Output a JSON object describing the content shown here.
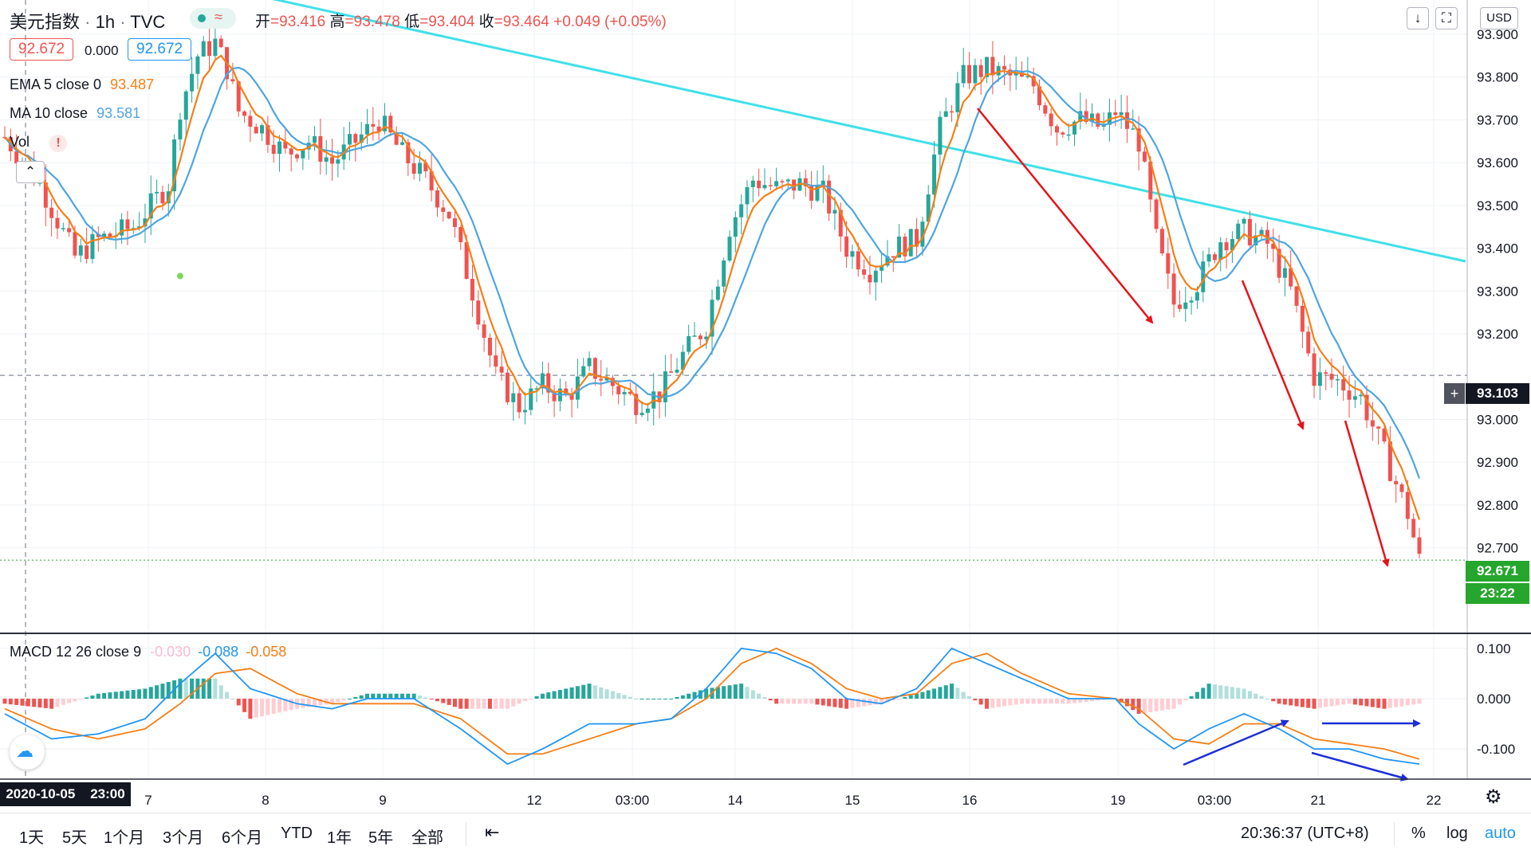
{
  "header": {
    "symbol": "美元指数",
    "interval": "1h",
    "exchange": "TVC",
    "ohlc": [
      {
        "label": "开",
        "value": "93.416"
      },
      {
        "label": "高",
        "value": "93.478"
      },
      {
        "label": "低",
        "value": "93.404"
      },
      {
        "label": "收",
        "value": "93.464"
      }
    ],
    "change": "+0.049 (+0.05%)",
    "price_box_left": "92.672",
    "spread": "0.000",
    "price_box_right": "92.672",
    "currency": "USD"
  },
  "indicators": {
    "ema": {
      "label": "EMA 5 close 0",
      "value": "93.487"
    },
    "ma": {
      "label": "MA 10 close",
      "value": "93.581"
    },
    "vol": {
      "label": "Vol",
      "alert": "!"
    },
    "macd": {
      "label": "MACD 12 26 close 9",
      "hist": "-0.030",
      "macd": "-0.088",
      "signal": "-0.058"
    }
  },
  "colors": {
    "up": "#26a69a",
    "down": "#ef5350",
    "ema": "#f57f17",
    "ma": "#4ea5e0",
    "trendline": "#40e0e8",
    "arrow_red": "#e8121a",
    "arrow_blue": "#1c2fd6",
    "last_price": "#26a62d"
  },
  "price_labels": {
    "crosshair": "93.103",
    "last": "92.671",
    "countdown": "23:22"
  },
  "time_axis": {
    "crosshair_label": "2020-10-05   23:00",
    "bottom_left": "2020-10-05",
    "bottom_time": "23:00"
  },
  "bottom_bar": {
    "ranges": [
      "1天",
      "5天",
      "1个月",
      "3个月",
      "6个月",
      "YTD",
      "1年",
      "5年",
      "全部"
    ],
    "clock": "20:36:37 (UTC+8)",
    "percent": "%",
    "log": "log",
    "auto": "auto"
  },
  "chart_data": [
    {
      "type": "candlestick",
      "title": "美元指数 1h TVC",
      "ylim": [
        92.5,
        93.98
      ],
      "y_ticks": [
        "93.900",
        "93.800",
        "93.700",
        "93.600",
        "93.500",
        "93.400",
        "93.300",
        "93.200",
        "93.000",
        "92.900",
        "92.800",
        "92.700"
      ],
      "x_ticks": [
        "7",
        "8",
        "9",
        "12",
        "03:00",
        "14",
        "15",
        "16",
        "19",
        "03:00",
        "21",
        "22"
      ],
      "price_path": [
        [
          0,
          93.66
        ],
        [
          6,
          93.55
        ],
        [
          12,
          93.38
        ],
        [
          16,
          93.42
        ],
        [
          22,
          93.45
        ],
        [
          28,
          93.55
        ],
        [
          30,
          93.73
        ],
        [
          33,
          93.85
        ],
        [
          36,
          93.88
        ],
        [
          38,
          93.82
        ],
        [
          40,
          93.72
        ],
        [
          44,
          93.68
        ],
        [
          48,
          93.62
        ],
        [
          52,
          93.65
        ],
        [
          56,
          93.6
        ],
        [
          60,
          93.65
        ],
        [
          64,
          93.7
        ],
        [
          68,
          93.62
        ],
        [
          72,
          93.56
        ],
        [
          76,
          93.48
        ],
        [
          80,
          93.3
        ],
        [
          84,
          93.1
        ],
        [
          88,
          93.03
        ],
        [
          92,
          93.08
        ],
        [
          96,
          93.05
        ],
        [
          100,
          93.12
        ],
        [
          104,
          93.08
        ],
        [
          108,
          93.04
        ],
        [
          112,
          93.06
        ],
        [
          116,
          93.15
        ],
        [
          120,
          93.22
        ],
        [
          124,
          93.45
        ],
        [
          128,
          93.56
        ],
        [
          132,
          93.54
        ],
        [
          136,
          93.55
        ],
        [
          140,
          93.53
        ],
        [
          144,
          93.4
        ],
        [
          148,
          93.35
        ],
        [
          152,
          93.4
        ],
        [
          156,
          93.42
        ],
        [
          160,
          93.68
        ],
        [
          164,
          93.8
        ],
        [
          168,
          93.82
        ],
        [
          172,
          93.8
        ],
        [
          176,
          93.78
        ],
        [
          180,
          93.68
        ],
        [
          184,
          93.7
        ],
        [
          188,
          93.68
        ],
        [
          190,
          93.72
        ],
        [
          194,
          93.65
        ],
        [
          197,
          93.42
        ],
        [
          200,
          93.27
        ],
        [
          204,
          93.32
        ],
        [
          208,
          93.42
        ],
        [
          212,
          93.44
        ],
        [
          216,
          93.41
        ],
        [
          220,
          93.3
        ],
        [
          224,
          93.1
        ],
        [
          228,
          93.09
        ],
        [
          232,
          93.05
        ],
        [
          236,
          92.92
        ],
        [
          240,
          92.78
        ],
        [
          242,
          92.67
        ]
      ],
      "ema": {
        "name": "EMA 5 close 0",
        "last": 93.487
      },
      "ma": {
        "name": "MA 10 close",
        "last": 93.581
      },
      "trendline": [
        [
          0,
          94.05
        ],
        [
          242,
          93.42
        ]
      ],
      "crosshair_price": 93.103,
      "last_price": 92.671
    },
    {
      "type": "macd",
      "title": "MACD 12 26 close 9",
      "ylim": [
        -0.16,
        0.13
      ],
      "y_ticks": [
        "0.100",
        "0.000",
        "-0.100"
      ],
      "macd_path": [
        [
          0,
          -0.03
        ],
        [
          8,
          -0.08
        ],
        [
          16,
          -0.07
        ],
        [
          24,
          -0.04
        ],
        [
          30,
          0.03
        ],
        [
          36,
          0.09
        ],
        [
          42,
          0.02
        ],
        [
          50,
          -0.01
        ],
        [
          56,
          -0.02
        ],
        [
          62,
          0.0
        ],
        [
          70,
          0.0
        ],
        [
          78,
          -0.06
        ],
        [
          86,
          -0.13
        ],
        [
          92,
          -0.1
        ],
        [
          100,
          -0.05
        ],
        [
          108,
          -0.05
        ],
        [
          114,
          -0.04
        ],
        [
          120,
          0.02
        ],
        [
          126,
          0.1
        ],
        [
          132,
          0.09
        ],
        [
          138,
          0.06
        ],
        [
          144,
          0.0
        ],
        [
          150,
          -0.01
        ],
        [
          156,
          0.02
        ],
        [
          162,
          0.1
        ],
        [
          168,
          0.07
        ],
        [
          174,
          0.04
        ],
        [
          182,
          0.0
        ],
        [
          190,
          0.0
        ],
        [
          194,
          -0.05
        ],
        [
          200,
          -0.1
        ],
        [
          206,
          -0.06
        ],
        [
          212,
          -0.03
        ],
        [
          218,
          -0.06
        ],
        [
          224,
          -0.1
        ],
        [
          230,
          -0.1
        ],
        [
          236,
          -0.12
        ],
        [
          242,
          -0.13
        ]
      ],
      "signal_path": [
        [
          0,
          -0.02
        ],
        [
          8,
          -0.06
        ],
        [
          16,
          -0.08
        ],
        [
          24,
          -0.06
        ],
        [
          30,
          -0.01
        ],
        [
          36,
          0.05
        ],
        [
          42,
          0.06
        ],
        [
          50,
          0.01
        ],
        [
          56,
          -0.01
        ],
        [
          62,
          -0.01
        ],
        [
          70,
          -0.01
        ],
        [
          78,
          -0.04
        ],
        [
          86,
          -0.11
        ],
        [
          92,
          -0.11
        ],
        [
          100,
          -0.08
        ],
        [
          108,
          -0.05
        ],
        [
          114,
          -0.04
        ],
        [
          120,
          0.0
        ],
        [
          126,
          0.07
        ],
        [
          132,
          0.1
        ],
        [
          138,
          0.07
        ],
        [
          144,
          0.02
        ],
        [
          150,
          0.0
        ],
        [
          156,
          0.01
        ],
        [
          162,
          0.07
        ],
        [
          168,
          0.09
        ],
        [
          174,
          0.05
        ],
        [
          182,
          0.01
        ],
        [
          190,
          0.0
        ],
        [
          194,
          -0.02
        ],
        [
          200,
          -0.08
        ],
        [
          206,
          -0.09
        ],
        [
          212,
          -0.05
        ],
        [
          218,
          -0.05
        ],
        [
          224,
          -0.08
        ],
        [
          230,
          -0.09
        ],
        [
          236,
          -0.1
        ],
        [
          242,
          -0.12
        ]
      ]
    }
  ]
}
